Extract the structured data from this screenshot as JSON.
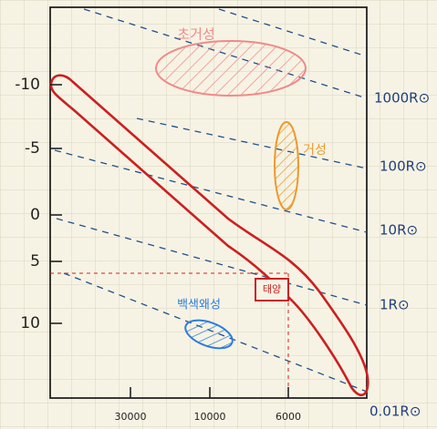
{
  "y_axis": {
    "labels": [
      "-10",
      "-5",
      "0",
      "5",
      "10"
    ]
  },
  "x_axis": {
    "labels": [
      "30000",
      "10000",
      "6000"
    ]
  },
  "radius_lines": {
    "labels": [
      "1000R⊙",
      "100R⊙",
      "10R⊙",
      "1R⊙",
      "0.01R⊙"
    ]
  },
  "regions": {
    "supergiant": "초거성",
    "giant": "거성",
    "white_dwarf": "백색왜성",
    "sun": "태양"
  }
}
